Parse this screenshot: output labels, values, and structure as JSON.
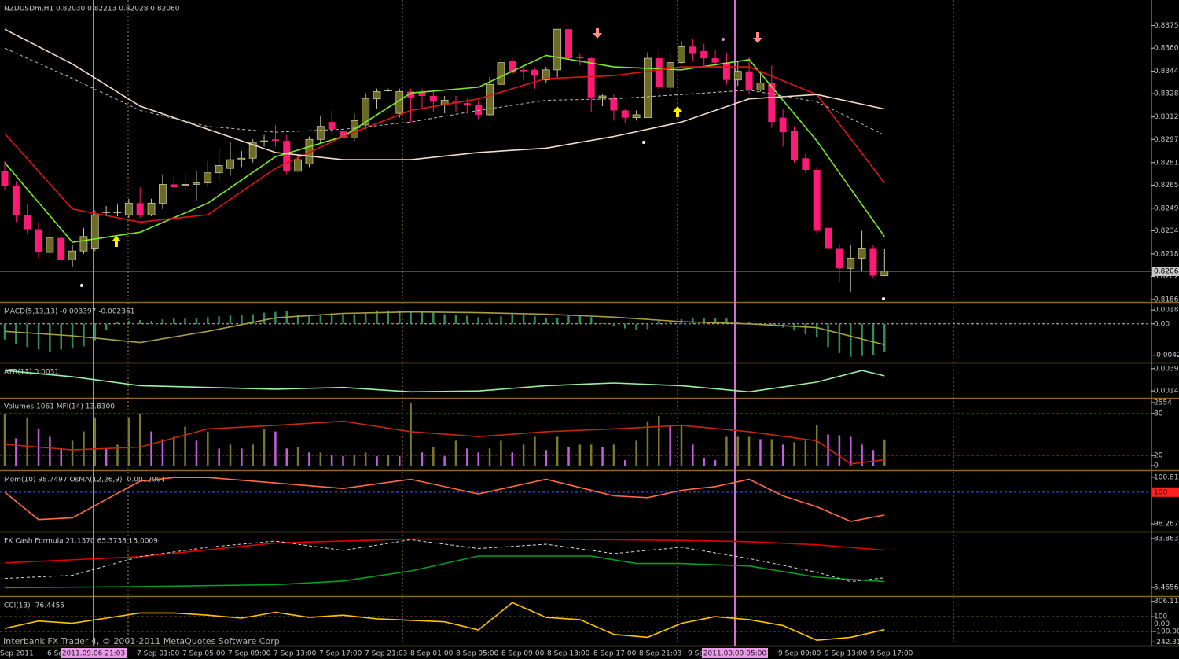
{
  "chart_data": [
    {
      "type": "candlestick",
      "title": "NZDUSDm,H1  0.82030 0.82213 0.82028 0.82060",
      "open": [
        0.8275,
        0.8265,
        0.8245,
        0.8235,
        0.8219,
        0.8229,
        0.8214,
        0.822,
        0.8222,
        0.8247,
        0.8247,
        0.8245,
        0.8253,
        0.8245,
        0.8253,
        0.8266,
        0.8266,
        0.8266,
        0.8267,
        0.8274,
        0.8277,
        0.8283,
        0.8284,
        0.8296,
        0.8297,
        0.8296,
        0.8275,
        0.828,
        0.8297,
        0.8309,
        0.8303,
        0.8298,
        0.8307,
        0.8325,
        0.8331,
        0.8315,
        0.833,
        0.833,
        0.8327,
        0.8321,
        0.8323,
        0.8322,
        0.8321,
        0.8314,
        0.8335,
        0.8351,
        0.8345,
        0.8345,
        0.8338,
        0.8345,
        0.8373,
        0.8354,
        0.8353,
        0.8326,
        0.8326,
        0.8317,
        0.8312,
        0.8312,
        0.8353,
        0.8333,
        0.835,
        0.8361,
        0.8358,
        0.8353,
        0.835,
        0.8338,
        0.8344,
        0.8331,
        0.8336,
        0.8312,
        0.8303,
        0.8284,
        0.8276,
        0.8236,
        0.8222,
        0.8208,
        0.8215,
        0.8222,
        0.8203
      ],
      "high": [
        0.8282,
        0.8268,
        0.8252,
        0.824,
        0.8238,
        0.8232,
        0.8224,
        0.8236,
        0.8248,
        0.8251,
        0.8252,
        0.8256,
        0.8264,
        0.8256,
        0.8273,
        0.8272,
        0.8274,
        0.8275,
        0.8282,
        0.829,
        0.8295,
        0.8289,
        0.8297,
        0.83,
        0.8307,
        0.83,
        0.8286,
        0.8299,
        0.8313,
        0.8317,
        0.8307,
        0.8315,
        0.8329,
        0.8332,
        0.8332,
        0.8332,
        0.8332,
        0.8332,
        0.8331,
        0.8327,
        0.8327,
        0.8325,
        0.8324,
        0.834,
        0.8354,
        0.8354,
        0.8348,
        0.8346,
        0.8347,
        0.8373,
        0.8373,
        0.8356,
        0.8354,
        0.8328,
        0.8328,
        0.8318,
        0.8317,
        0.8357,
        0.8358,
        0.8356,
        0.8365,
        0.8366,
        0.8363,
        0.8359,
        0.8357,
        0.8351,
        0.8354,
        0.8342,
        0.8348,
        0.8318,
        0.8306,
        0.8287,
        0.8278,
        0.8248,
        0.8225,
        0.8224,
        0.8234,
        0.8224,
        0.82213
      ],
      "low": [
        0.8262,
        0.824,
        0.8232,
        0.8215,
        0.8215,
        0.8212,
        0.8209,
        0.8218,
        0.822,
        0.8244,
        0.8244,
        0.8243,
        0.8243,
        0.8244,
        0.8249,
        0.8262,
        0.8262,
        0.8255,
        0.8264,
        0.8268,
        0.8272,
        0.8278,
        0.8281,
        0.8292,
        0.8292,
        0.8273,
        0.8275,
        0.8278,
        0.8294,
        0.83,
        0.8295,
        0.8296,
        0.8304,
        0.8318,
        0.833,
        0.8312,
        0.8309,
        0.8318,
        0.8316,
        0.8315,
        0.8316,
        0.8315,
        0.8311,
        0.8313,
        0.8332,
        0.8341,
        0.8338,
        0.8332,
        0.8336,
        0.834,
        0.8352,
        0.8348,
        0.8316,
        0.832,
        0.831,
        0.8308,
        0.831,
        0.8312,
        0.8329,
        0.833,
        0.8349,
        0.8351,
        0.8348,
        0.8347,
        0.8335,
        0.8334,
        0.8328,
        0.833,
        0.8305,
        0.8292,
        0.8281,
        0.8274,
        0.8231,
        0.822,
        0.8199,
        0.8192,
        0.8206,
        0.8201,
        0.82028
      ],
      "close": [
        0.8265,
        0.8245,
        0.8235,
        0.8219,
        0.8229,
        0.8214,
        0.822,
        0.823,
        0.8245,
        0.8247,
        0.8247,
        0.8253,
        0.8245,
        0.8253,
        0.8266,
        0.8264,
        0.8266,
        0.8267,
        0.8274,
        0.8279,
        0.8283,
        0.8284,
        0.8295,
        0.8296,
        0.8296,
        0.8275,
        0.8283,
        0.8297,
        0.8306,
        0.8304,
        0.8298,
        0.831,
        0.8325,
        0.833,
        0.8331,
        0.833,
        0.8326,
        0.8327,
        0.8323,
        0.8324,
        0.8322,
        0.8321,
        0.8314,
        0.8335,
        0.835,
        0.8343,
        0.8344,
        0.8341,
        0.8345,
        0.8373,
        0.8353,
        0.8353,
        0.8326,
        0.8327,
        0.8317,
        0.8312,
        0.8314,
        0.8353,
        0.8333,
        0.835,
        0.8361,
        0.8356,
        0.8353,
        0.835,
        0.8338,
        0.8344,
        0.8331,
        0.8336,
        0.8309,
        0.8302,
        0.8283,
        0.8276,
        0.8234,
        0.8222,
        0.8208,
        0.8215,
        0.8222,
        0.8203,
        0.8206
      ],
      "colors": [
        "#6b6b26",
        "#ff1a75"
      ],
      "series": [
        {
          "color": "#7cea24",
          "x": [
            0,
            6,
            12,
            18,
            24,
            30,
            36,
            42,
            48,
            54,
            60,
            66,
            72,
            78
          ],
          "values": [
            0.8281,
            0.8226,
            0.8233,
            0.8253,
            0.8285,
            0.8299,
            0.8329,
            0.8333,
            0.8355,
            0.8347,
            0.8345,
            0.8352,
            0.8296,
            0.823
          ]
        },
        {
          "color": "#e01414",
          "x": [
            0,
            6,
            12,
            18,
            24,
            30,
            36,
            42,
            48,
            54,
            60,
            66,
            72,
            78
          ],
          "values": [
            0.8301,
            0.8249,
            0.824,
            0.8245,
            0.8277,
            0.8299,
            0.8317,
            0.8325,
            0.8339,
            0.8341,
            0.8347,
            0.8347,
            0.8328,
            0.8267
          ]
        },
        {
          "color": "#f5dcc8",
          "x": [
            0,
            6,
            12,
            18,
            24,
            30,
            36,
            42,
            48,
            54,
            60,
            66,
            72,
            78
          ],
          "values": [
            0.8373,
            0.8349,
            0.832,
            0.8304,
            0.8288,
            0.8283,
            0.8283,
            0.8288,
            0.8291,
            0.8299,
            0.8309,
            0.8325,
            0.8328,
            0.8318
          ]
        },
        {
          "color": "#bdbdbd",
          "dash": true,
          "x": [
            0,
            6,
            12,
            18,
            24,
            30,
            36,
            42,
            48,
            54,
            60,
            66,
            72,
            78
          ],
          "values": [
            0.836,
            0.8339,
            0.8317,
            0.8306,
            0.8302,
            0.8304,
            0.8309,
            0.8317,
            0.8324,
            0.8325,
            0.8328,
            0.8331,
            0.8323,
            0.83
          ]
        }
      ],
      "ylim": [
        0.81854,
        0.83921
      ],
      "yticks": [
        0.83755,
        {
          "value": 0.836,
          "label": "0.83600"
        },
        {
          "value": 0.8344,
          "label": "0.83440"
        },
        0.83285,
        0.83125,
        {
          "value": 0.8297,
          "label": "0.82970"
        },
        {
          "value": 0.8281,
          "label": "0.82810"
        },
        0.82655,
        0.82495,
        {
          "value": 0.8234,
          "label": "0.82340"
        },
        {
          "value": 0.8218,
          "label": "0.82180"
        },
        0.82025,
        0.81865
      ],
      "level_box": {
        "value": 0.8206,
        "label": "0.82060"
      },
      "level_box_color": "#c8c8c8"
    },
    {
      "type": "bar",
      "title": "MACD(5,13,13) -0.003397 -0.002361",
      "color": "#2f8f55",
      "values": [
        -0.0021,
        -0.0027,
        -0.0031,
        -0.0034,
        -0.0037,
        -0.0034,
        -0.0033,
        -0.003,
        -0.0022,
        -0.0008,
        0.0002,
        0.0004,
        0.0005,
        0.0004,
        0.0006,
        0.0007,
        0.0007,
        0.0008,
        0.0009,
        0.001,
        0.0011,
        0.0012,
        0.0013,
        0.0015,
        0.0016,
        0.0017,
        0.0012,
        0.0011,
        0.0013,
        0.0014,
        0.0013,
        0.0013,
        0.0015,
        0.0018,
        0.0018,
        0.0018,
        0.0017,
        0.0016,
        0.0015,
        0.0013,
        0.0012,
        0.0011,
        0.0009,
        0.0007,
        0.001,
        0.0013,
        0.0012,
        0.001,
        0.0008,
        0.0008,
        0.0012,
        0.0011,
        0.0009,
        0.0001,
        -0.0003,
        -0.0006,
        -0.0008,
        -0.0007,
        0.0004,
        0.0004,
        0.0006,
        0.0008,
        0.0008,
        0.0008,
        0.0007,
        0.0003,
        0.0002,
        -0.0001,
        -0.0001,
        -0.0005,
        -0.0009,
        -0.0014,
        -0.0018,
        -0.0031,
        -0.0039,
        -0.0044,
        -0.0043,
        -0.0042,
        -0.0038
      ],
      "series": [
        {
          "color": "#a8a040",
          "x": [
            0,
            6,
            12,
            18,
            24,
            30,
            36,
            42,
            48,
            54,
            60,
            66,
            72,
            78
          ],
          "values": [
            -0.001,
            -0.0016,
            -0.0025,
            -0.001,
            0.0008,
            0.0014,
            0.0016,
            0.0015,
            0.0013,
            0.0009,
            0.0003,
            0,
            -0.0005,
            -0.0028
          ]
        }
      ],
      "levels": [
        {
          "value": 0,
          "color": "#c8c8c8"
        }
      ],
      "ylim": [
        -0.00507,
        0.00261
      ],
      "yticks": [
        0.00185,
        {
          "value": 0,
          "label": "0.00"
        },
        {
          "value": -0.0042,
          "label": "-0.00420"
        }
      ]
    },
    {
      "type": "line",
      "title": "ATR(13) 0.0031",
      "series": [
        {
          "color": "#98f0a0",
          "x": [
            0,
            6,
            12,
            18,
            24,
            30,
            36,
            42,
            48,
            54,
            60,
            66,
            72,
            76,
            78
          ],
          "values": [
            0.0037,
            0.003,
            0.002,
            0.0018,
            0.0016,
            0.0018,
            0.0013,
            0.0014,
            0.002,
            0.0023,
            0.002,
            0.0013,
            0.0024,
            0.0037,
            0.0031
          ]
        }
      ],
      "ylim": [
        0.00071,
        0.00433
      ],
      "yticks": [
        0.0039,
        0.0014
      ]
    },
    {
      "type": "bar",
      "title": "Volumes 1061  MFI(14) 13.8300",
      "colors": [
        "#7a7a2c",
        "#c45ee0"
      ],
      "values": [
        2113,
        1104,
        1955,
        1482,
        1167,
        694,
        1009,
        1387,
        1955,
        694,
        851,
        1955,
        2113,
        1387,
        1072,
        1167,
        1577,
        1009,
        1387,
        694,
        851,
        694,
        851,
        1482,
        1387,
        694,
        757,
        536,
        536,
        441,
        378,
        441,
        536,
        378,
        441,
        378,
        2554,
        536,
        757,
        378,
        1009,
        694,
        536,
        694,
        1009,
        536,
        851,
        1167,
        631,
        1167,
        757,
        851,
        851,
        757,
        851,
        221,
        1009,
        1797,
        2018,
        1640,
        1640,
        851,
        315,
        221,
        1167,
        1167,
        1167,
        1072,
        1072,
        851,
        946,
        1009,
        1640,
        1261,
        1230,
        1167,
        851,
        631,
        1061
      ],
      "series": [
        {
          "color": "#c02a10",
          "axis": "y2",
          "x": [
            0,
            6,
            12,
            18,
            24,
            30,
            36,
            42,
            48,
            54,
            60,
            66,
            72,
            75,
            78
          ],
          "values": [
            36,
            28,
            32,
            58,
            63,
            69,
            54,
            47,
            54,
            58,
            63,
            54,
            41,
            8,
            13.83
          ]
        }
      ],
      "levels": [
        {
          "value": 80,
          "axis": "y2",
          "color": "#a01818"
        },
        {
          "value": 20,
          "axis": "y2",
          "color": "#a01818"
        }
      ],
      "ylim": [
        -158,
        2680
      ],
      "yticks": [
        2554,
        0
      ],
      "y2lim": [
        0,
        100
      ],
      "y2ticks": [
        80,
        20
      ]
    },
    {
      "type": "line",
      "title": "Mom(10) 98.7497  OsMA(12,26,9) -0.0012004",
      "series": [
        {
          "color": "#ff6a4a",
          "x": [
            0,
            3,
            6,
            9,
            12,
            15,
            18,
            24,
            30,
            36,
            42,
            48,
            54,
            57,
            60,
            63,
            66,
            69,
            72,
            75,
            78
          ],
          "values": [
            100,
            98.5,
            98.6,
            99.6,
            100.6,
            100.8,
            100.8,
            100.5,
            100.2,
            100.7,
            99.9,
            100.7,
            99.8,
            99.7,
            100.1,
            100.3,
            100.7,
            99.8,
            99.2,
            98.4,
            98.7497
          ]
        }
      ],
      "levels": [
        {
          "value": 100,
          "color": "#4060ff"
        }
      ],
      "ylim": [
        97.886,
        101.067
      ],
      "yticks": [
        100.8127,
        98.2676
      ],
      "level_box": {
        "value": 100,
        "label": "100"
      },
      "level_box_color": "#ff2020"
    },
    {
      "type": "line",
      "title": "FX Cash Formula 21.1370 65.3738 15.0009",
      "series": [
        {
          "color": "#e00000",
          "x": [
            0,
            12,
            24,
            36,
            48,
            60,
            66,
            72,
            78
          ],
          "values": [
            45,
            55,
            77,
            83,
            83,
            81,
            79,
            74,
            65.3738
          ]
        },
        {
          "color": "#00a020",
          "x": [
            0,
            12,
            24,
            30,
            36,
            42,
            48,
            52,
            56,
            60,
            66,
            72,
            78
          ],
          "values": [
            5,
            7,
            10,
            16,
            32,
            56,
            56,
            56,
            44,
            44,
            40,
            22,
            15.0009
          ]
        },
        {
          "color": "#d8d8d8",
          "dash": true,
          "x": [
            0,
            6,
            12,
            18,
            24,
            30,
            36,
            42,
            48,
            54,
            60,
            66,
            72,
            75,
            78
          ],
          "values": [
            20,
            25,
            55,
            70,
            80,
            65,
            82,
            68,
            75,
            60,
            70,
            52,
            30,
            15,
            21.137
          ]
        }
      ],
      "ylim": [
        -6.98,
        91.33
      ],
      "yticks": [
        83.8637,
        5.4656
      ]
    },
    {
      "type": "line",
      "title": "CCI(13) -76.4455",
      "series": [
        {
          "color": "#ffc400",
          "x": [
            0,
            3,
            6,
            9,
            12,
            15,
            18,
            21,
            24,
            27,
            30,
            33,
            36,
            39,
            42,
            45,
            48,
            51,
            54,
            57,
            60,
            63,
            66,
            69,
            72,
            75,
            78
          ],
          "values": [
            -60,
            40,
            10,
            80,
            150,
            150,
            120,
            80,
            160,
            90,
            120,
            70,
            50,
            30,
            -80,
            290,
            90,
            60,
            -140,
            -180,
            10,
            100,
            60,
            -20,
            -220,
            -180,
            -76.4455
          ]
        }
      ],
      "levels": [
        {
          "value": 100,
          "color": "#a08030"
        },
        {
          "value": -100,
          "color": "#a08030"
        }
      ],
      "ylim": [
        -282,
        346
      ],
      "yticks": [
        306.113,
        100,
        {
          "value": 0,
          "label": "0.00"
        },
        {
          "value": -100,
          "label": "-100.00"
        },
        -242.31
      ]
    }
  ],
  "time_axis": [
    "Sep 2011",
    "6 Se",
    "7 Sep 01:00",
    "7 Sep 05:00",
    "7 Sep 09:00",
    "7 Sep 13:00",
    "7 Sep 17:00",
    "7 Sep 21:03",
    "8 Sep 01:00",
    "8 Sep 05:00",
    "8 Sep 09:00",
    "8 Sep 13:00",
    "8 Sep 17:00",
    "8 Sep 21:03",
    "9 Se",
    "9 Sep 09:00",
    "9 Sep 13:00",
    "9 Sep 17:00"
  ],
  "markers": [
    "2011.09.06 21:03",
    "2011.09.09 05:00"
  ],
  "footer": "Interbank FX Trader 4, © 2001-2011 MetaQuotes Software Corp."
}
